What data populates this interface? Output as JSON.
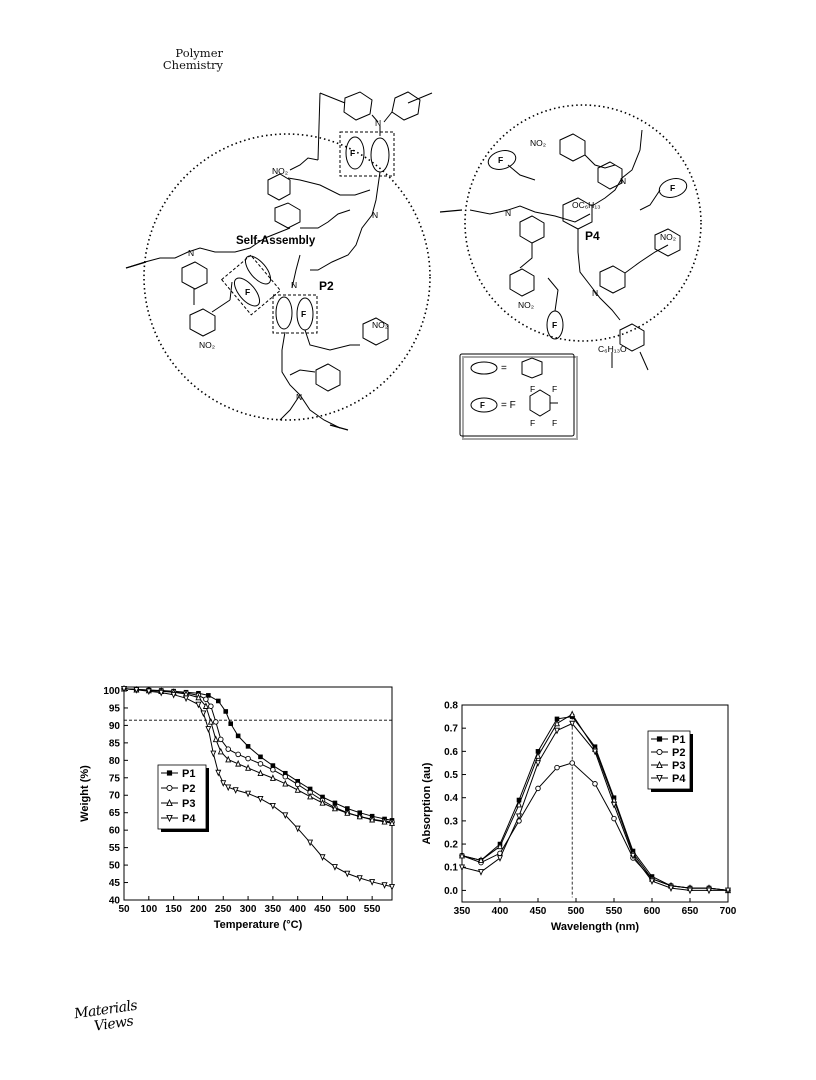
{
  "journal": {
    "line1": "Polymer",
    "line2": "Chemistry"
  },
  "scheme": {
    "left_title": "Self-Assembly",
    "left_polymer": "P2",
    "right_polymer": "P4",
    "substituents": {
      "no2": "NO₂",
      "n": "N",
      "o": "O",
      "f": "F",
      "oc6h13": "OC₆H₁₃",
      "c6h13o": "C₆H₁₃O"
    },
    "legend": {
      "eq": "=",
      "eq_f": "= F"
    }
  },
  "tga": {
    "xlabel": "Temperature (°C)",
    "ylabel": "Weight (%)",
    "legend": [
      "P1",
      "P2",
      "P3",
      "P4"
    ]
  },
  "uv": {
    "xlabel": "Wavelength (nm)",
    "ylabel": "Absorption (au)",
    "legend": [
      "P1",
      "P2",
      "P3",
      "P4"
    ]
  },
  "publisher_logo": {
    "line1": "Materials",
    "line2": "Views"
  },
  "chart_data": [
    {
      "type": "line",
      "xlabel": "Temperature (°C)",
      "ylabel": "Weight (%)",
      "xlim": [
        50,
        590
      ],
      "ylim": [
        40,
        101
      ],
      "xticks": [
        50,
        100,
        150,
        200,
        250,
        300,
        350,
        400,
        450,
        500,
        550
      ],
      "yticks": [
        40,
        45,
        50,
        55,
        60,
        65,
        70,
        75,
        80,
        85,
        90,
        95,
        100
      ],
      "reference_line_y": 91.5,
      "legend_position": "center-left",
      "grid": false,
      "series": [
        {
          "name": "P1",
          "marker": "square-filled",
          "x": [
            50,
            75,
            100,
            125,
            150,
            175,
            200,
            220,
            240,
            255,
            265,
            280,
            300,
            325,
            350,
            375,
            400,
            425,
            450,
            475,
            500,
            525,
            550,
            575,
            590
          ],
          "y": [
            100.5,
            100.3,
            100.1,
            100,
            99.8,
            99.5,
            99.2,
            98.6,
            97,
            94,
            90.5,
            87,
            84,
            81,
            78.5,
            76.3,
            74,
            71.8,
            69.5,
            67.8,
            66.2,
            65,
            64,
            63.2,
            62.8
          ]
        },
        {
          "name": "P2",
          "marker": "circle-open",
          "x": [
            50,
            75,
            100,
            125,
            150,
            175,
            200,
            215,
            225,
            235,
            245,
            260,
            280,
            300,
            325,
            350,
            375,
            400,
            425,
            450,
            475,
            500,
            525,
            550,
            575,
            590
          ],
          "y": [
            100.5,
            100.3,
            100.1,
            99.9,
            99.7,
            99.3,
            98.6,
            97.5,
            95.5,
            91,
            86,
            83.2,
            81.7,
            80.5,
            79,
            77.3,
            75.3,
            73.1,
            70.8,
            68.5,
            66.5,
            65,
            63.9,
            63.1,
            62.6,
            62.3
          ]
        },
        {
          "name": "P3",
          "marker": "triangle-up-open",
          "x": [
            50,
            75,
            100,
            125,
            150,
            175,
            200,
            215,
            225,
            235,
            245,
            260,
            280,
            300,
            325,
            350,
            375,
            400,
            425,
            450,
            475,
            500,
            525,
            550,
            575,
            590
          ],
          "y": [
            100.5,
            100.2,
            100,
            99.8,
            99.5,
            99,
            98,
            95.5,
            91,
            86,
            82.5,
            80.2,
            79,
            77.8,
            76.3,
            74.9,
            73.3,
            71.5,
            69.6,
            67.8,
            66.2,
            64.9,
            63.9,
            63,
            62.4,
            62
          ]
        },
        {
          "name": "P4",
          "marker": "triangle-down-open",
          "x": [
            50,
            75,
            100,
            125,
            150,
            175,
            200,
            210,
            220,
            230,
            240,
            250,
            260,
            275,
            300,
            325,
            350,
            375,
            400,
            425,
            450,
            475,
            500,
            525,
            550,
            575,
            590
          ],
          "y": [
            100.5,
            100.2,
            99.8,
            99.4,
            98.8,
            97.8,
            96,
            93.5,
            89,
            82,
            76.5,
            73.5,
            72.3,
            71.5,
            70.5,
            69,
            67,
            64.3,
            60.5,
            56.5,
            52.3,
            49.5,
            47.6,
            46.3,
            45.2,
            44.3,
            43.8
          ]
        }
      ]
    },
    {
      "type": "line",
      "xlabel": "Wavelength (nm)",
      "ylabel": "Absorption (au)",
      "xlim": [
        350,
        700
      ],
      "ylim": [
        -0.05,
        0.8
      ],
      "xticks": [
        350,
        400,
        450,
        500,
        550,
        600,
        650,
        700
      ],
      "yticks": [
        0.0,
        0.1,
        0.2,
        0.3,
        0.4,
        0.5,
        0.6,
        0.7,
        0.8
      ],
      "reference_line_x": 495,
      "legend_position": "top-right",
      "grid": false,
      "series": [
        {
          "name": "P1",
          "marker": "square-filled",
          "x": [
            350,
            375,
            400,
            425,
            450,
            475,
            495,
            525,
            550,
            575,
            600,
            625,
            650,
            675,
            700
          ],
          "y": [
            0.15,
            0.13,
            0.2,
            0.39,
            0.6,
            0.74,
            0.75,
            0.62,
            0.4,
            0.17,
            0.06,
            0.02,
            0.01,
            0.01,
            0.0
          ]
        },
        {
          "name": "P2",
          "marker": "circle-open",
          "x": [
            350,
            375,
            400,
            425,
            450,
            475,
            495,
            525,
            550,
            575,
            600,
            625,
            650,
            675,
            700
          ],
          "y": [
            0.15,
            0.12,
            0.16,
            0.3,
            0.44,
            0.53,
            0.55,
            0.46,
            0.31,
            0.14,
            0.05,
            0.02,
            0.01,
            0.01,
            0.0
          ]
        },
        {
          "name": "P3",
          "marker": "triangle-up-open",
          "x": [
            350,
            375,
            400,
            425,
            450,
            475,
            495,
            525,
            550,
            575,
            600,
            625,
            650,
            675,
            700
          ],
          "y": [
            0.15,
            0.13,
            0.19,
            0.37,
            0.58,
            0.72,
            0.76,
            0.61,
            0.39,
            0.16,
            0.05,
            0.02,
            0.01,
            0.01,
            0.0
          ]
        },
        {
          "name": "P4",
          "marker": "triangle-down-open",
          "x": [
            350,
            375,
            400,
            425,
            450,
            475,
            495,
            525,
            550,
            575,
            600,
            625,
            650,
            675,
            700
          ],
          "y": [
            0.1,
            0.08,
            0.14,
            0.32,
            0.55,
            0.69,
            0.72,
            0.6,
            0.37,
            0.15,
            0.04,
            0.01,
            0.0,
            0.0,
            0.0
          ]
        }
      ]
    }
  ]
}
